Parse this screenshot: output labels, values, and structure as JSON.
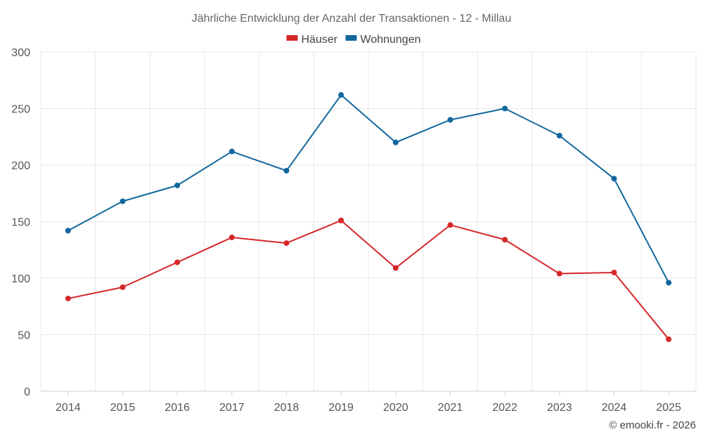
{
  "chart_data": {
    "type": "line",
    "title": "Jährliche Entwicklung der Anzahl der Transaktionen - 12 - Millau",
    "categories": [
      "2014",
      "2015",
      "2016",
      "2017",
      "2018",
      "2019",
      "2020",
      "2021",
      "2022",
      "2023",
      "2024",
      "2025"
    ],
    "series": [
      {
        "name": "Häuser",
        "color": "#d62728",
        "values": [
          82,
          92,
          114,
          136,
          131,
          151,
          109,
          147,
          134,
          104,
          105,
          46
        ]
      },
      {
        "name": "Wohnungen",
        "color": "#11679e",
        "values": [
          142,
          168,
          182,
          212,
          195,
          262,
          220,
          240,
          250,
          226,
          188,
          96
        ]
      }
    ],
    "ylim": [
      0,
      300
    ],
    "yticks": [
      0,
      50,
      100,
      150,
      200,
      250,
      300
    ],
    "xlabel": "",
    "ylabel": "",
    "grid": true,
    "legend": "top-center"
  },
  "credit": "© emooki.fr - 2026"
}
